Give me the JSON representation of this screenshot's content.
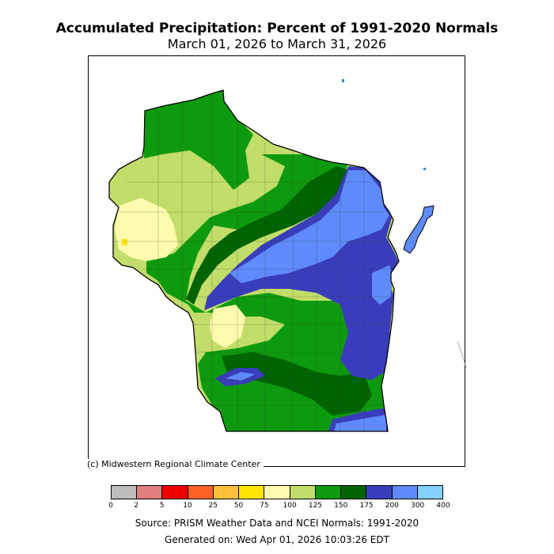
{
  "title": "Accumulated Precipitation: Percent of 1991-2020 Normals",
  "subtitle": "March 01, 2026 to March 31, 2026",
  "copyright": "(c) Midwestern Regional Climate Center",
  "source": "Source: PRISM Weather Data and NCEI Normals: 1991-2020",
  "generated": "Generated on: Wed Apr 01, 2026 10:03:26 EDT",
  "legend": {
    "colors": [
      "#bdbdbd",
      "#e17f7f",
      "#ee0000",
      "#ff6127",
      "#ffc13d",
      "#ffe600",
      "#fffbae",
      "#c2dd69",
      "#0e9a0e",
      "#006400",
      "#3a3dbb",
      "#5e8afa",
      "#84d1fd"
    ],
    "ticks": [
      "0",
      "2",
      "5",
      "10",
      "25",
      "50",
      "75",
      "100",
      "125",
      "150",
      "175",
      "200",
      "300",
      "400"
    ]
  },
  "map": {
    "state": "Wisconsin",
    "colors": {
      "base": "#c2dd69",
      "green": "#0e9a0e",
      "dark_green": "#006400",
      "pale_yellow": "#fffbae",
      "yellow": "#ffe600",
      "dark_blue": "#3a3dbb",
      "blue": "#5e8afa",
      "lake_fleck": "#2e8bd0"
    }
  }
}
